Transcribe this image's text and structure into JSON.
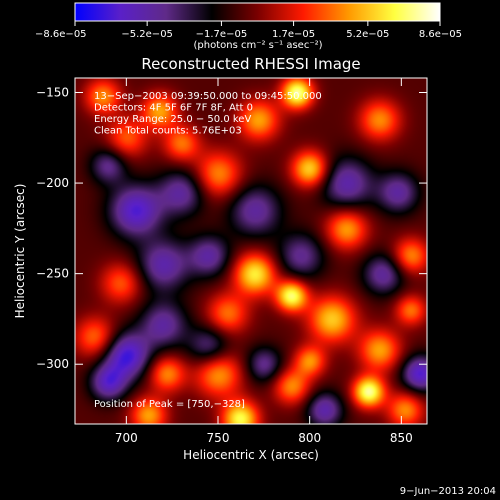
{
  "chart_data": {
    "type": "heatmap",
    "title": "Reconstructed RHESSI Image",
    "xlabel": "Heliocentric X (arcsec)",
    "ylabel": "Heliocentric Y (arcsec)",
    "xlim": [
      672,
      864
    ],
    "ylim": [
      -333,
      -142
    ],
    "xticks": [
      700,
      750,
      800,
      850
    ],
    "xtick_labels": [
      "700",
      "750",
      "800",
      "850"
    ],
    "yticks": [
      -150,
      -200,
      -250,
      -300
    ],
    "ytick_labels": [
      "−150",
      "−200",
      "−250",
      "−300"
    ],
    "colorbar": {
      "range": [
        -8.6e-05,
        8.6e-05
      ],
      "ticks": [
        -8.6e-05,
        -5.2e-05,
        -1.7e-05,
        1.7e-05,
        5.2e-05,
        8.6e-05
      ],
      "tick_labels": [
        "−8.6e−05",
        "−5.2e−05",
        "−1.7e−05",
        "1.7e−05",
        "5.2e−05",
        "8.6e−05"
      ],
      "units_label": "(photons cm⁻² s⁻¹ asec⁻²)",
      "colormap": [
        "#0000ff",
        "#5a20c8",
        "#5f2a88",
        "#000000",
        "#7a0000",
        "#ff1a00",
        "#ff9900",
        "#ffff40",
        "#ffffff"
      ]
    },
    "annotations": [
      "13−Sep−2003 09:39:50.000 to 09:45:50.000",
      "Detectors: 4F 5F 6F 7F 8F, Att 0",
      "Energy Range: 25.0 − 50.0 keV",
      "Clean     Total counts: 5.76E+03"
    ],
    "peak_label": "Position of Peak = [750,−328]",
    "peak": [
      750,
      -328
    ],
    "sources": [
      {
        "x": 687,
        "y": -152,
        "s": 7,
        "v": 0.55
      },
      {
        "x": 700,
        "y": -175,
        "s": 8,
        "v": 0.45
      },
      {
        "x": 718,
        "y": -160,
        "s": 7,
        "v": 0.6
      },
      {
        "x": 730,
        "y": -178,
        "s": 7,
        "v": 0.5
      },
      {
        "x": 750,
        "y": -195,
        "s": 9,
        "v": 0.55
      },
      {
        "x": 772,
        "y": -165,
        "s": 8,
        "v": 0.6
      },
      {
        "x": 793,
        "y": -150,
        "s": 6,
        "v": 0.95
      },
      {
        "x": 800,
        "y": -192,
        "s": 7,
        "v": 0.75
      },
      {
        "x": 838,
        "y": -165,
        "s": 8,
        "v": 0.55
      },
      {
        "x": 820,
        "y": -225,
        "s": 8,
        "v": 0.6
      },
      {
        "x": 855,
        "y": -240,
        "s": 7,
        "v": 0.55
      },
      {
        "x": 770,
        "y": -250,
        "s": 8,
        "v": 0.8
      },
      {
        "x": 790,
        "y": -262,
        "s": 6,
        "v": 0.9
      },
      {
        "x": 755,
        "y": -272,
        "s": 8,
        "v": 0.5
      },
      {
        "x": 812,
        "y": -275,
        "s": 9,
        "v": 0.7
      },
      {
        "x": 838,
        "y": -292,
        "s": 8,
        "v": 0.6
      },
      {
        "x": 855,
        "y": -270,
        "s": 6,
        "v": 0.5
      },
      {
        "x": 750,
        "y": -305,
        "s": 9,
        "v": 0.6
      },
      {
        "x": 722,
        "y": -305,
        "s": 7,
        "v": 0.55
      },
      {
        "x": 712,
        "y": -328,
        "s": 7,
        "v": 0.6
      },
      {
        "x": 790,
        "y": -312,
        "s": 7,
        "v": 0.55
      },
      {
        "x": 832,
        "y": -315,
        "s": 6,
        "v": 0.95
      },
      {
        "x": 800,
        "y": -298,
        "s": 6,
        "v": 0.55
      },
      {
        "x": 762,
        "y": -330,
        "s": 7,
        "v": 0.85
      },
      {
        "x": 852,
        "y": -325,
        "s": 7,
        "v": 0.55
      },
      {
        "x": 683,
        "y": -285,
        "s": 8,
        "v": 0.5
      },
      {
        "x": 697,
        "y": -255,
        "s": 8,
        "v": 0.45
      },
      {
        "x": 705,
        "y": -215,
        "s": 10,
        "v": -0.7
      },
      {
        "x": 730,
        "y": -205,
        "s": 9,
        "v": -0.5
      },
      {
        "x": 770,
        "y": -215,
        "s": 10,
        "v": -0.5
      },
      {
        "x": 795,
        "y": -240,
        "s": 9,
        "v": -0.45
      },
      {
        "x": 820,
        "y": -200,
        "s": 10,
        "v": -0.55
      },
      {
        "x": 848,
        "y": -205,
        "s": 8,
        "v": -0.5
      },
      {
        "x": 720,
        "y": -245,
        "s": 10,
        "v": -0.55
      },
      {
        "x": 745,
        "y": -240,
        "s": 8,
        "v": -0.5
      },
      {
        "x": 700,
        "y": -295,
        "s": 9,
        "v": -0.75
      },
      {
        "x": 720,
        "y": -278,
        "s": 9,
        "v": -0.5
      },
      {
        "x": 745,
        "y": -290,
        "s": 8,
        "v": -0.45
      },
      {
        "x": 690,
        "y": -310,
        "s": 7,
        "v": -0.6
      },
      {
        "x": 775,
        "y": -300,
        "s": 7,
        "v": -0.45
      },
      {
        "x": 860,
        "y": -305,
        "s": 7,
        "v": -0.7
      },
      {
        "x": 808,
        "y": -325,
        "s": 7,
        "v": -0.55
      },
      {
        "x": 690,
        "y": -190,
        "s": 7,
        "v": -0.45
      },
      {
        "x": 840,
        "y": -250,
        "s": 8,
        "v": -0.5
      }
    ]
  },
  "footer": {
    "date": "9−Jun−2013 20:04"
  }
}
